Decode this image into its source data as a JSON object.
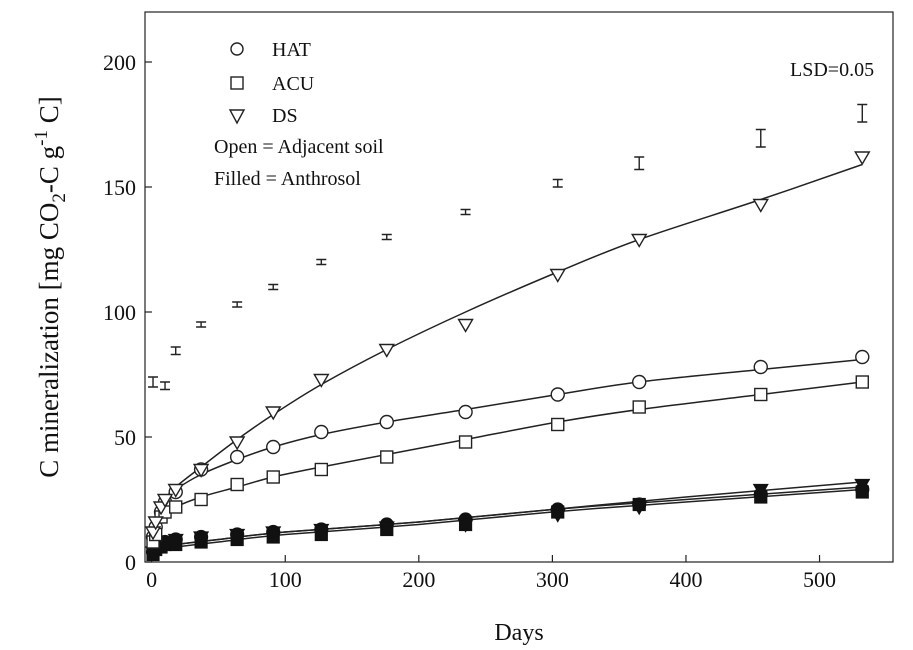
{
  "chart_data": {
    "type": "scatter",
    "xlabel": "Days",
    "ylabel_main": "C mineralization [mg CO",
    "ylabel_sub2": "2",
    "ylabel_mid": "-C g",
    "ylabel_sup": "-1",
    "ylabel_end": " C]",
    "xlim": [
      -5,
      555
    ],
    "ylim": [
      0,
      220
    ],
    "x_ticks": [
      0,
      100,
      200,
      300,
      400,
      500
    ],
    "y_ticks": [
      0,
      50,
      100,
      150,
      200
    ],
    "legend": {
      "position": "top-left",
      "entries": [
        {
          "marker": "circle",
          "label": "HAT"
        },
        {
          "marker": "square",
          "label": "ACU"
        },
        {
          "marker": "triangle-down",
          "label": "DS"
        }
      ],
      "note_open": "Open = Adjacent soil",
      "note_filled": "Filled = Anthrosol"
    },
    "lsd_label": "LSD=0.05",
    "series": [
      {
        "name": "HAT",
        "marker": "circle",
        "fill": "open",
        "x": [
          1,
          3,
          7,
          10,
          18,
          37,
          64,
          91,
          127,
          176,
          235,
          304,
          365,
          456,
          532
        ],
        "y": [
          10,
          14,
          20,
          24,
          28,
          37,
          42,
          46,
          52,
          56,
          60,
          67,
          72,
          78,
          82
        ]
      },
      {
        "name": "ACU",
        "marker": "square",
        "fill": "open",
        "x": [
          1,
          3,
          7,
          10,
          18,
          37,
          64,
          91,
          127,
          176,
          235,
          304,
          365,
          456,
          532
        ],
        "y": [
          8,
          11,
          18,
          20,
          22,
          25,
          31,
          34,
          37,
          42,
          48,
          55,
          62,
          67,
          72
        ]
      },
      {
        "name": "DS",
        "marker": "triangle-down",
        "fill": "open",
        "x": [
          1,
          3,
          7,
          10,
          18,
          37,
          64,
          91,
          127,
          176,
          235,
          304,
          365,
          456,
          532
        ],
        "y": [
          12,
          16,
          22,
          25,
          29,
          37,
          48,
          60,
          73,
          85,
          95,
          115,
          129,
          143,
          162
        ]
      },
      {
        "name": "HAT",
        "marker": "circle",
        "fill": "filled",
        "x": [
          1,
          3,
          7,
          10,
          18,
          37,
          64,
          91,
          127,
          176,
          235,
          304,
          365,
          456,
          532
        ],
        "y": [
          4,
          6,
          7,
          8,
          9,
          10,
          11,
          12,
          13,
          15,
          17,
          21,
          23,
          27,
          29
        ]
      },
      {
        "name": "ACU",
        "marker": "square",
        "fill": "filled",
        "x": [
          1,
          3,
          7,
          10,
          18,
          37,
          64,
          91,
          127,
          176,
          235,
          304,
          365,
          456,
          532
        ],
        "y": [
          3,
          5,
          6,
          7,
          7,
          8,
          9,
          10,
          11,
          13,
          15,
          20,
          23,
          26,
          28
        ]
      },
      {
        "name": "DS",
        "marker": "triangle-down",
        "fill": "filled",
        "x": [
          1,
          3,
          7,
          10,
          18,
          37,
          64,
          91,
          127,
          176,
          235,
          304,
          365,
          456,
          532
        ],
        "y": [
          4,
          6,
          7,
          8,
          9,
          10,
          11,
          12,
          13,
          14,
          15,
          19,
          22,
          29,
          31
        ]
      }
    ],
    "fit_curves": [
      {
        "name": "HAT",
        "fill": "open",
        "x": [
          3,
          10,
          18,
          37,
          64,
          91,
          127,
          176,
          235,
          304,
          365,
          456,
          532
        ],
        "y": [
          17,
          25,
          29,
          35,
          41,
          46,
          51,
          56,
          61,
          67,
          72,
          77,
          81
        ]
      },
      {
        "name": "ACU",
        "fill": "open",
        "x": [
          3,
          10,
          18,
          37,
          64,
          91,
          127,
          176,
          235,
          304,
          365,
          456,
          532
        ],
        "y": [
          12,
          19,
          22,
          26,
          30,
          34,
          38,
          43,
          49,
          56,
          61,
          67,
          72
        ]
      },
      {
        "name": "DS",
        "fill": "open",
        "x": [
          3,
          10,
          18,
          37,
          64,
          91,
          127,
          176,
          235,
          304,
          365,
          456,
          532
        ],
        "y": [
          18,
          25,
          30,
          38,
          49,
          59,
          71,
          85,
          100,
          116,
          129,
          145,
          159
        ]
      },
      {
        "name": "HAT",
        "fill": "filled",
        "x": [
          2,
          50,
          100,
          200,
          300,
          400,
          532
        ],
        "y": [
          6,
          9,
          12,
          16,
          21,
          25,
          30
        ]
      },
      {
        "name": "ACU",
        "fill": "filled",
        "x": [
          2,
          50,
          100,
          200,
          300,
          400,
          532
        ],
        "y": [
          5,
          8,
          11,
          15,
          20,
          24,
          29
        ]
      },
      {
        "name": "DS",
        "fill": "filled",
        "x": [
          2,
          50,
          100,
          200,
          300,
          400,
          532
        ],
        "y": [
          6,
          9,
          12,
          16,
          21,
          26,
          32
        ]
      }
    ],
    "lsd_bars": [
      {
        "x": 1,
        "y_low": 70,
        "y_high": 74
      },
      {
        "x": 10,
        "y_low": 69,
        "y_high": 72
      },
      {
        "x": 18,
        "y_low": 83,
        "y_high": 86
      },
      {
        "x": 37,
        "y_low": 94,
        "y_high": 96
      },
      {
        "x": 64,
        "y_low": 102,
        "y_high": 104
      },
      {
        "x": 91,
        "y_low": 109,
        "y_high": 111
      },
      {
        "x": 127,
        "y_low": 119,
        "y_high": 121
      },
      {
        "x": 176,
        "y_low": 129,
        "y_high": 131
      },
      {
        "x": 235,
        "y_low": 139,
        "y_high": 141
      },
      {
        "x": 304,
        "y_low": 150,
        "y_high": 153
      },
      {
        "x": 365,
        "y_low": 157,
        "y_high": 162
      },
      {
        "x": 456,
        "y_low": 166,
        "y_high": 173
      },
      {
        "x": 532,
        "y_low": 176,
        "y_high": 183
      }
    ],
    "grid": false
  }
}
